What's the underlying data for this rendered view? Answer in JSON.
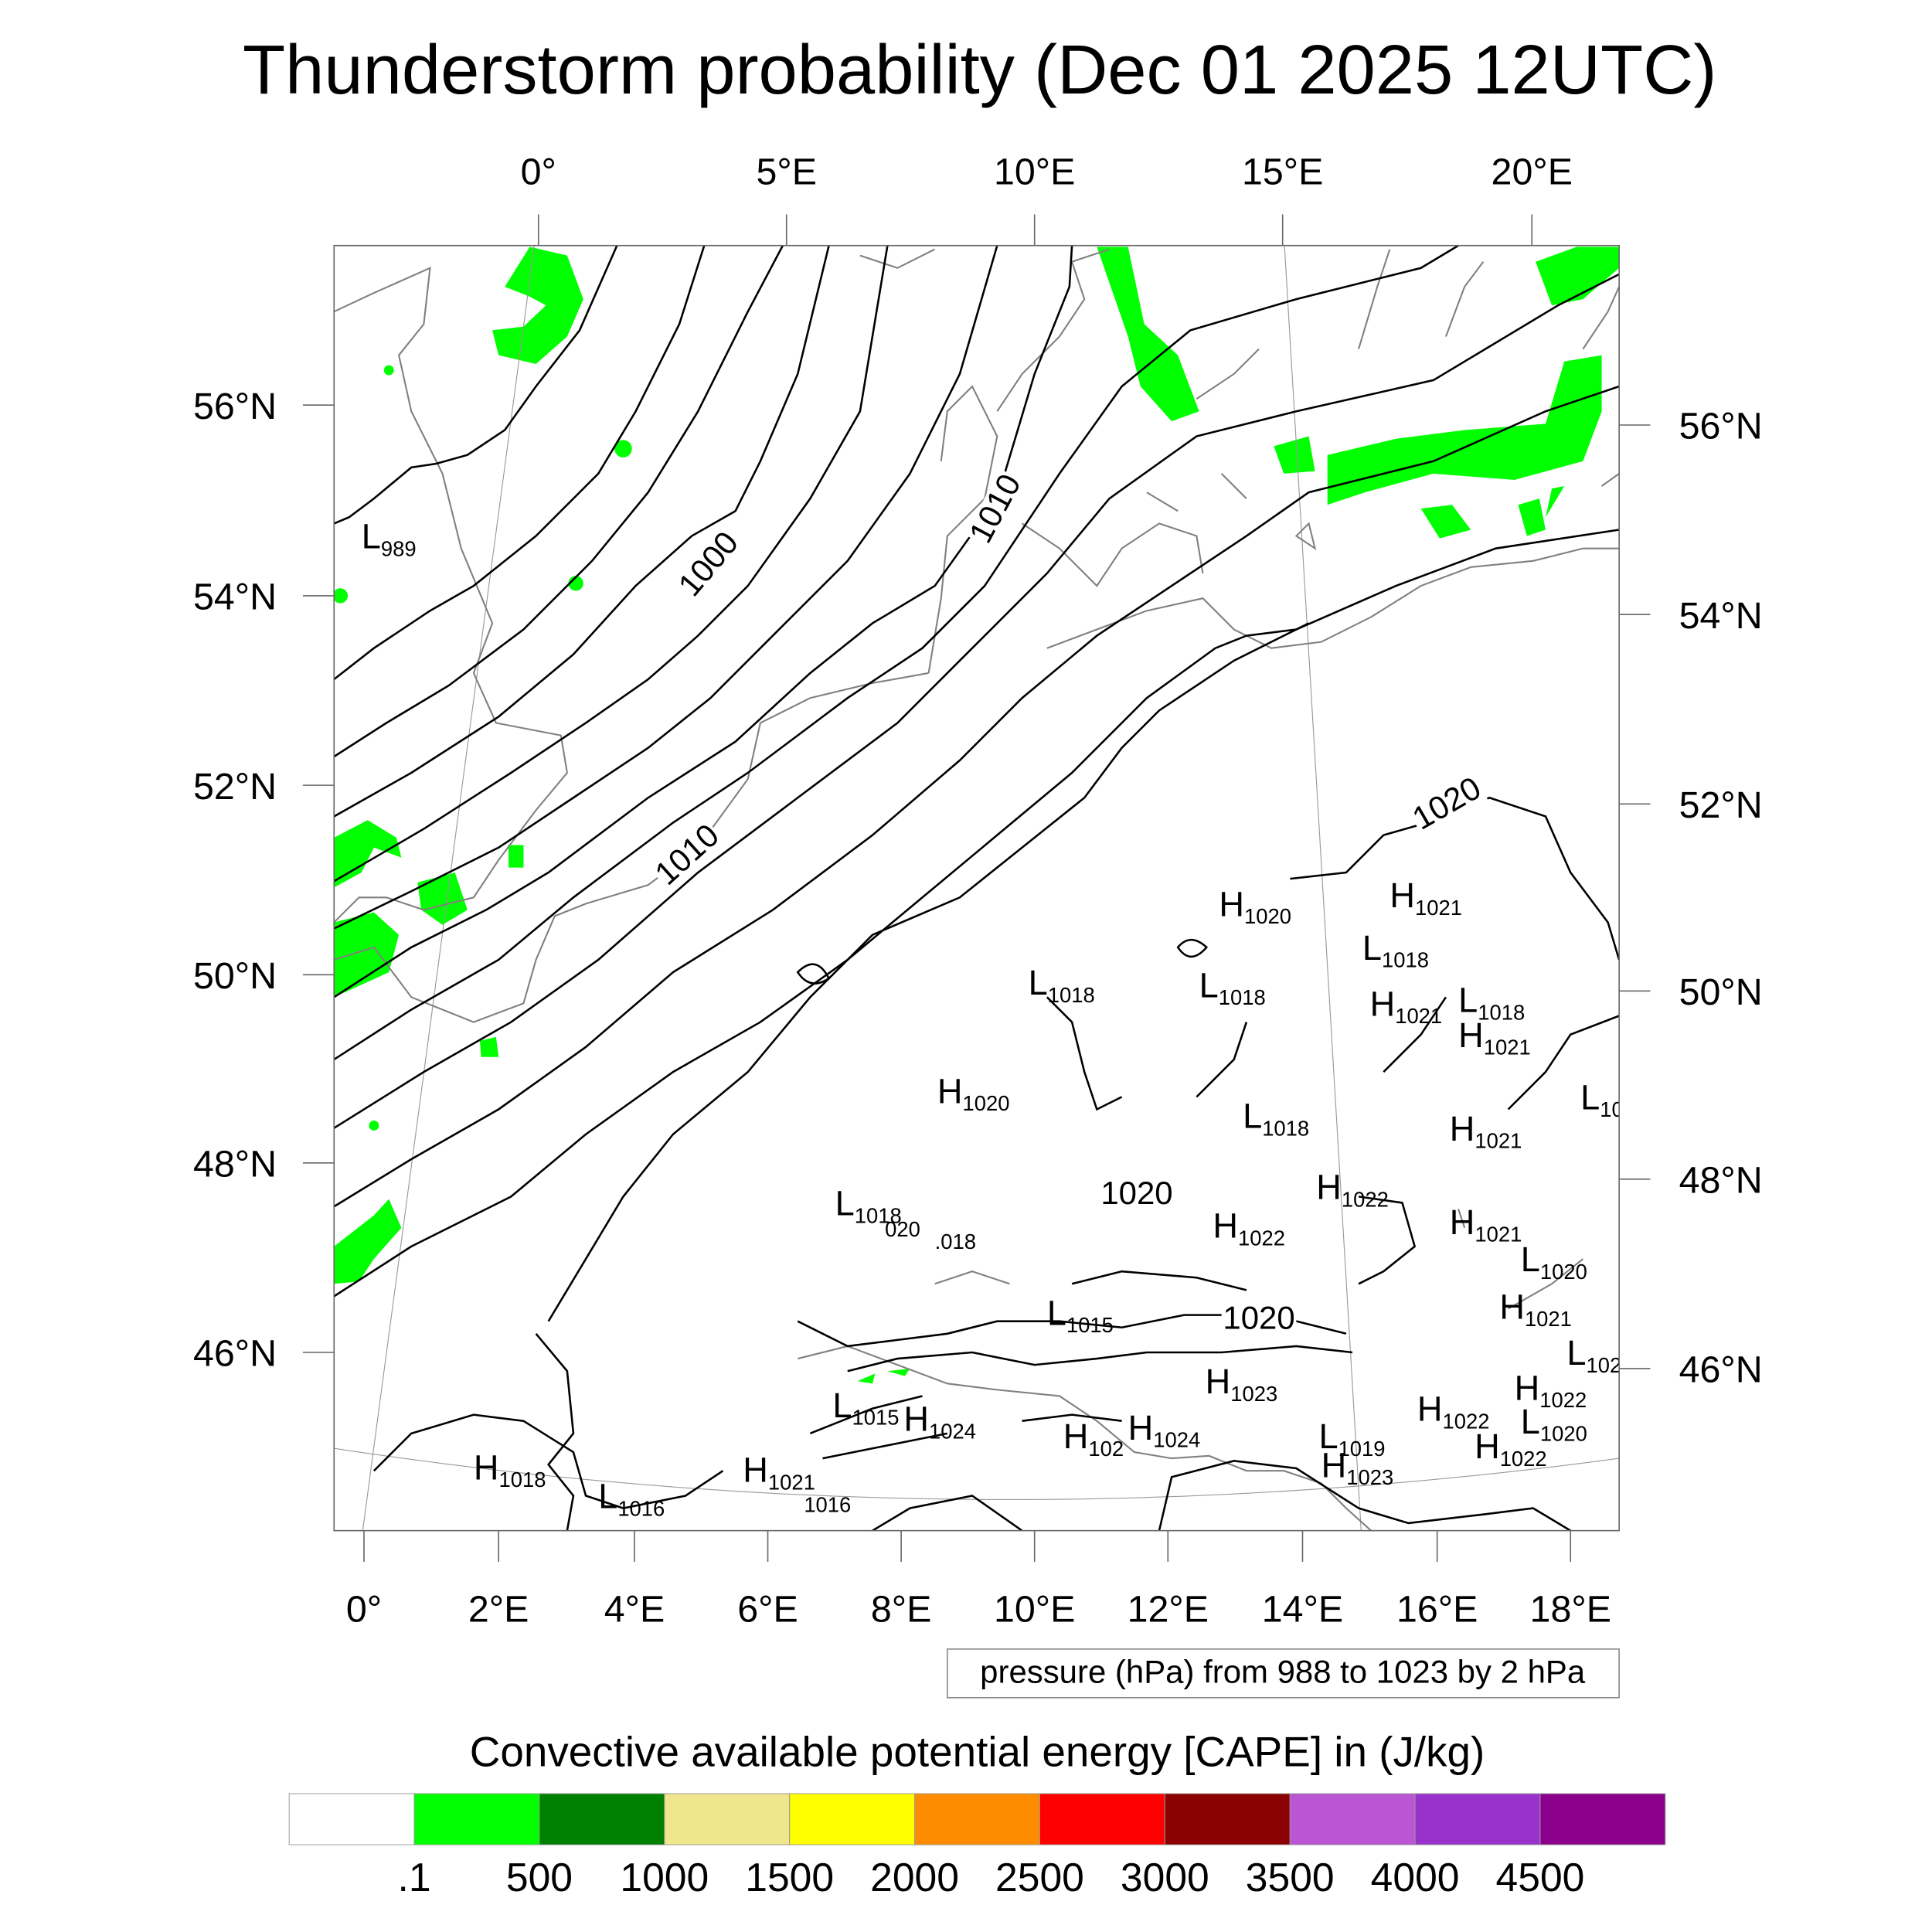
{
  "title": "Thunderstorm probability (Dec 01 2025 12UTC)",
  "top_lon_labels": [
    "0°",
    "5°E",
    "10°E",
    "15°E",
    "20°E"
  ],
  "bottom_lon_labels": [
    "0°",
    "2°E",
    "4°E",
    "6°E",
    "8°E",
    "10°E",
    "12°E",
    "14°E",
    "16°E",
    "18°E"
  ],
  "left_lat_labels": [
    "56°N",
    "54°N",
    "52°N",
    "50°N",
    "48°N",
    "46°N"
  ],
  "right_lat_labels": [
    "56°N",
    "54°N",
    "52°N",
    "50°N",
    "48°N",
    "46°N"
  ],
  "contour_info": "pressure (hPa) from 988 to 1023 by 2 hPa",
  "isobar_labels": [
    "1000",
    "1010",
    "1010",
    "1020",
    "1020",
    "1020"
  ],
  "pressure_centers": [
    {
      "t": "L",
      "v": "989"
    },
    {
      "t": "H",
      "v": "1020"
    },
    {
      "t": "H",
      "v": "1021"
    },
    {
      "t": "L",
      "v": "1018"
    },
    {
      "t": "L",
      "v": "1018"
    },
    {
      "t": "L",
      "v": "1018"
    },
    {
      "t": "H",
      "v": "1021"
    },
    {
      "t": "L",
      "v": "1018"
    },
    {
      "t": "H",
      "v": "1021"
    },
    {
      "t": "L",
      "v": "10"
    },
    {
      "t": "H",
      "v": "1020"
    },
    {
      "t": "H",
      "v": "1021"
    },
    {
      "t": "L",
      "v": "1018"
    },
    {
      "t": "H",
      "v": "1022"
    },
    {
      "t": "L",
      "v": "1018"
    },
    {
      "t": "H",
      "v": "1022"
    },
    {
      "t": "H",
      "v": "1021"
    },
    {
      "t": "L",
      "v": "1020"
    },
    {
      "t": "L",
      "v": "1015"
    },
    {
      "t": "H",
      "v": "1021"
    },
    {
      "t": "L",
      "v": "102"
    },
    {
      "t": "H",
      "v": "1023"
    },
    {
      "t": "H",
      "v": "1022"
    },
    {
      "t": "L",
      "v": "1015"
    },
    {
      "t": "H",
      "v": "1024"
    },
    {
      "t": "H",
      "v": "1022"
    },
    {
      "t": "L",
      "v": "1020"
    },
    {
      "t": "H",
      "v": "102"
    },
    {
      "t": "H",
      "v": "1024"
    },
    {
      "t": "L",
      "v": "1019"
    },
    {
      "t": "H",
      "v": "1022"
    },
    {
      "t": "H",
      "v": "1023"
    },
    {
      "t": "H",
      "v": "1018"
    },
    {
      "t": "H",
      "v": "1021"
    },
    {
      "t": "L",
      "v": "1016"
    },
    {
      "t": "",
      "v": "1016"
    },
    {
      "t": "",
      "v": "020"
    },
    {
      "t": "",
      "v": ".018"
    }
  ],
  "colorbar": {
    "title": "Convective available potential energy [CAPE] in (J/kg)",
    "colors": [
      "#ffffff",
      "#00ff00",
      "#008000",
      "#f0e68c",
      "#ffff00",
      "#ff8c00",
      "#ff0000",
      "#8b0000",
      "#ba55d3",
      "#9932cc",
      "#8b008b"
    ],
    "labels": [
      ".1",
      "500",
      "1000",
      "1500",
      "2000",
      "2500",
      "3000",
      "3500",
      "4000",
      "4500"
    ]
  }
}
